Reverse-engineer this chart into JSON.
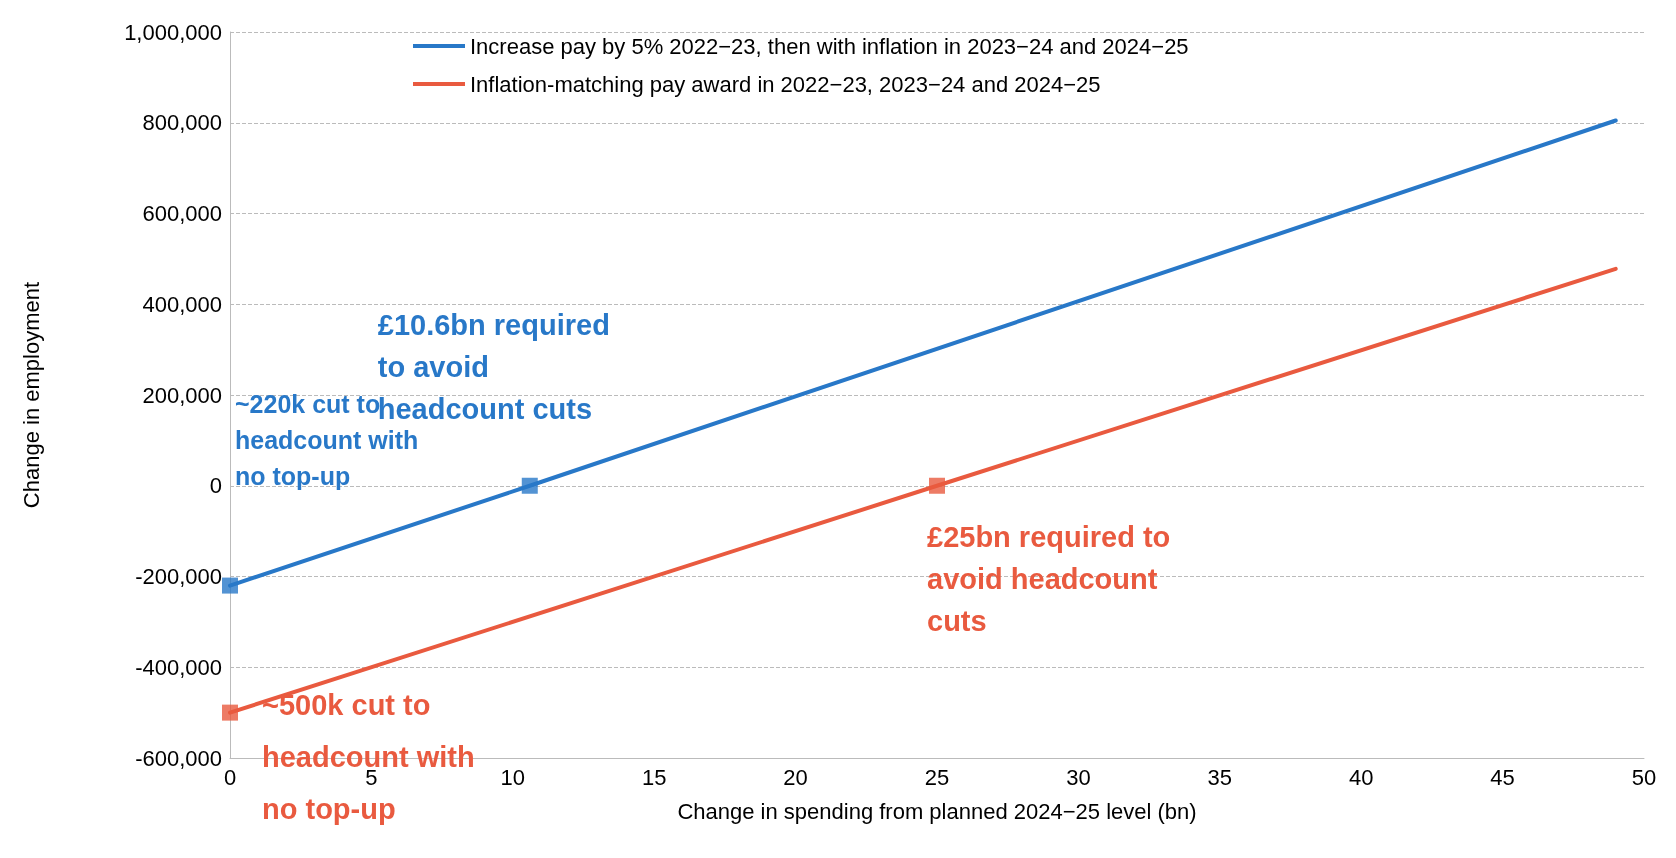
{
  "chart_data": {
    "type": "line",
    "xlabel": "Change in spending from planned 2024−25 level (bn)",
    "ylabel": "Change in employment",
    "xlim": [
      0,
      50
    ],
    "xticks": [
      0,
      5,
      10,
      15,
      20,
      25,
      30,
      35,
      40,
      45,
      50
    ],
    "ylim": [
      -600000,
      1000000
    ],
    "yticks": [
      {
        "value": -600000,
        "label": "-600,000"
      },
      {
        "value": -400000,
        "label": "-400,000"
      },
      {
        "value": -200000,
        "label": "-200,000"
      },
      0,
      {
        "value": 200000,
        "label": "200,000"
      },
      {
        "value": 400000,
        "label": "400,000"
      },
      {
        "value": 600000,
        "label": "600,000"
      },
      {
        "value": 800000,
        "label": "800,000"
      },
      {
        "value": 1000000,
        "label": "1,000,000"
      }
    ],
    "grid": "y",
    "legend": "top",
    "line_style": "solid",
    "series": [
      {
        "name": "Increase pay by 5% 2022−23, then with inflation in 2023−24 and 2024−25",
        "color": "#2878c8",
        "marker": "none",
        "x": [
          0,
          10.6,
          49
        ],
        "values": [
          -220000,
          0,
          805000
        ]
      },
      {
        "name": "Inflation-matching pay award in 2022−23, 2023−24 and 2024−25",
        "color": "#e95a3f",
        "marker": "none",
        "x": [
          0,
          25,
          49
        ],
        "values": [
          -500000,
          0,
          478000
        ]
      },
      {
        "type": "scatter",
        "color": "#2878c8",
        "marker": "square",
        "x": [
          0,
          10.6
        ],
        "values": [
          -220000,
          0
        ]
      },
      {
        "type": "scatter",
        "color": "#e95a3f",
        "marker": "square",
        "x": [
          0,
          25
        ],
        "values": [
          -500000,
          0
        ]
      }
    ],
    "annotations": [
      "~220k cut to headcount with no top-up",
      {
        "text": "£10.6bn required to avoid headcount cuts",
        "x": 10.6,
        "y": 0
      },
      {
        "text": "£25bn required to avoid headcount cuts",
        "x": 25,
        "y": 0
      },
      {
        "text": "~500k cut to headcount with no top-up",
        "x": 0,
        "y": -500000
      }
    ]
  }
}
